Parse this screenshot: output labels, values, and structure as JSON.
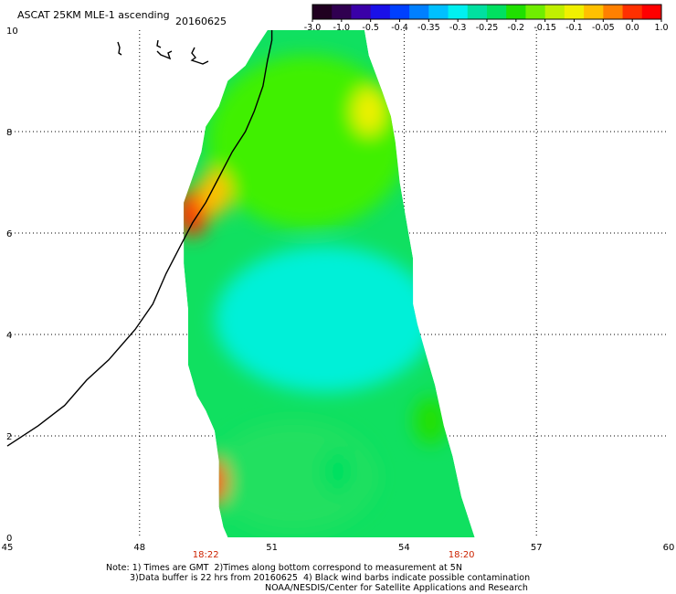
{
  "header": {
    "title": "ASCAT 25KM MLE-1 ascending",
    "date": "20160625"
  },
  "colorbar": {
    "colors": [
      "#200020",
      "#300050",
      "#3a00a8",
      "#1a10e8",
      "#0040ff",
      "#0080ff",
      "#00c0ff",
      "#00f0f0",
      "#00e0a0",
      "#00e060",
      "#20e000",
      "#70ee00",
      "#c0f000",
      "#f0f000",
      "#ffc000",
      "#ff8000",
      "#ff3000",
      "#ff0000"
    ],
    "tick_labels": [
      "-3.0",
      "-1.0",
      "-0.5",
      "-0.4",
      "-0.35",
      "-0.3",
      "-0.25",
      "-0.2",
      "-0.15",
      "-0.1",
      "-0.05",
      "0.0",
      "1.0"
    ]
  },
  "map": {
    "x_ticks": [
      "45",
      "48",
      "51",
      "54",
      "57",
      "60"
    ],
    "y_ticks": [
      "0",
      "2",
      "4",
      "6",
      "8",
      "10"
    ],
    "time_labels": [
      {
        "text": "18:22",
        "lon": 49.5
      },
      {
        "text": "18:20",
        "lon": 55.3
      }
    ],
    "time_label_color": "#cc2200",
    "coastline": [
      [
        45.0,
        1.8
      ],
      [
        45.7,
        2.2
      ],
      [
        46.3,
        2.6
      ],
      [
        46.8,
        3.1
      ],
      [
        47.3,
        3.5
      ],
      [
        47.9,
        4.1
      ],
      [
        48.3,
        4.6
      ],
      [
        48.6,
        5.2
      ],
      [
        48.9,
        5.7
      ],
      [
        49.2,
        6.2
      ],
      [
        49.5,
        6.6
      ],
      [
        49.8,
        7.1
      ],
      [
        50.1,
        7.6
      ],
      [
        50.4,
        8.0
      ],
      [
        50.6,
        8.4
      ],
      [
        50.8,
        8.9
      ],
      [
        50.9,
        9.4
      ],
      [
        51.0,
        9.8
      ],
      [
        51.0,
        10.0
      ]
    ],
    "swath": {
      "left_edge": [
        [
          49.0,
          6.6
        ],
        [
          49.0,
          5.4
        ],
        [
          49.1,
          4.5
        ],
        [
          49.1,
          3.4
        ],
        [
          49.3,
          2.8
        ],
        [
          49.5,
          2.5
        ],
        [
          49.7,
          2.1
        ],
        [
          49.8,
          1.5
        ],
        [
          49.8,
          1.0
        ],
        [
          49.8,
          0.6
        ],
        [
          49.9,
          0.2
        ],
        [
          50.0,
          0.0
        ]
      ],
      "right_edge": [
        [
          55.6,
          0.0
        ],
        [
          55.3,
          0.8
        ],
        [
          55.1,
          1.6
        ],
        [
          54.9,
          2.2
        ],
        [
          54.7,
          3.0
        ],
        [
          54.5,
          3.6
        ],
        [
          54.3,
          4.2
        ],
        [
          54.2,
          4.6
        ],
        [
          54.2,
          5.5
        ],
        [
          54.1,
          6.0
        ],
        [
          54.0,
          6.5
        ],
        [
          53.9,
          7.0
        ],
        [
          53.8,
          7.8
        ],
        [
          53.7,
          8.3
        ],
        [
          53.5,
          8.8
        ],
        [
          53.2,
          9.5
        ],
        [
          53.1,
          10.0
        ]
      ],
      "top_left_edge": [
        [
          49.4,
          7.6
        ],
        [
          49.5,
          8.1
        ],
        [
          49.8,
          8.5
        ],
        [
          50.0,
          9.0
        ],
        [
          50.4,
          9.3
        ],
        [
          50.6,
          9.6
        ],
        [
          50.9,
          10.0
        ]
      ],
      "anomalies": [
        {
          "lon": 49.2,
          "lat": 6.4,
          "value": 0.0
        },
        {
          "lon": 49.7,
          "lat": 6.8,
          "value": -0.05
        },
        {
          "lon": 49.6,
          "lat": 1.1,
          "value": 0.0
        },
        {
          "lon": 53.2,
          "lat": 8.4,
          "value": -0.1
        },
        {
          "lon": 54.6,
          "lat": 2.3,
          "value": -0.2
        },
        {
          "lon": 52.5,
          "lat": 1.3,
          "value": -0.25
        }
      ]
    }
  },
  "footer": {
    "line1": "Note: 1) Times are GMT  2)Times along bottom correspond to measurement at 5N",
    "line2": "3)Data buffer is 22 hrs from 20160625  4) Black wind barbs indicate possible contamination",
    "line3": "NOAA/NESDIS/Center for Satellite Applications and Research"
  }
}
